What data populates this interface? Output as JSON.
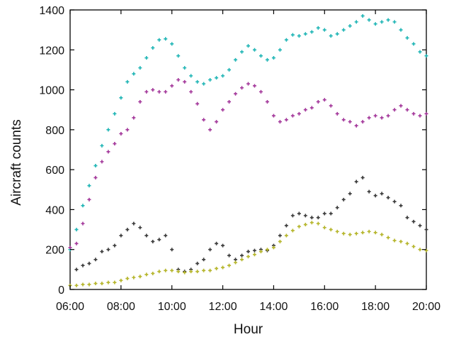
{
  "chart_data": {
    "type": "scatter",
    "xlabel": "Hour",
    "ylabel": "Aircraft counts",
    "x_tick_labels": [
      "06:00",
      "08:00",
      "10:00",
      "12:00",
      "14:00",
      "16:00",
      "18:00",
      "20:00"
    ],
    "x_tick_values": [
      6,
      8,
      10,
      12,
      14,
      16,
      18,
      20
    ],
    "y_ticks": [
      0,
      200,
      400,
      600,
      800,
      1000,
      1200,
      1400
    ],
    "xlim": [
      6,
      20
    ],
    "ylim": [
      0,
      1400
    ],
    "grid": false,
    "legend": false,
    "series": [
      {
        "color": "#1fb5b5",
        "x": [
          6.0,
          6.25,
          6.5,
          6.75,
          7.0,
          7.25,
          7.5,
          7.75,
          8.0,
          8.25,
          8.5,
          8.75,
          9.0,
          9.25,
          9.5,
          9.75,
          10.0,
          10.25,
          10.5,
          10.75,
          11.0,
          11.25,
          11.5,
          11.75,
          12.0,
          12.25,
          12.5,
          12.75,
          13.0,
          13.25,
          13.5,
          13.75,
          14.0,
          14.25,
          14.5,
          14.75,
          15.0,
          15.25,
          15.5,
          15.75,
          16.0,
          16.25,
          16.5,
          16.75,
          17.0,
          17.25,
          17.5,
          17.75,
          18.0,
          18.25,
          18.5,
          18.75,
          19.0,
          19.25,
          19.5,
          19.75,
          20.0
        ],
        "y": [
          200,
          300,
          420,
          520,
          620,
          720,
          800,
          880,
          960,
          1040,
          1080,
          1110,
          1160,
          1210,
          1250,
          1255,
          1230,
          1170,
          1110,
          1070,
          1040,
          1030,
          1050,
          1060,
          1070,
          1100,
          1150,
          1190,
          1220,
          1200,
          1170,
          1150,
          1160,
          1200,
          1250,
          1275,
          1270,
          1280,
          1290,
          1310,
          1300,
          1270,
          1280,
          1300,
          1320,
          1340,
          1370,
          1350,
          1330,
          1340,
          1350,
          1340,
          1300,
          1260,
          1230,
          1190,
          1170
        ]
      },
      {
        "color": "#a3379a",
        "x": [
          6.0,
          6.25,
          6.5,
          6.75,
          7.0,
          7.25,
          7.5,
          7.75,
          8.0,
          8.25,
          8.5,
          8.75,
          9.0,
          9.25,
          9.5,
          9.75,
          10.0,
          10.25,
          10.5,
          10.75,
          11.0,
          11.25,
          11.5,
          11.75,
          12.0,
          12.25,
          12.5,
          12.75,
          13.0,
          13.25,
          13.5,
          13.75,
          14.0,
          14.25,
          14.5,
          14.75,
          15.0,
          15.25,
          15.5,
          15.75,
          16.0,
          16.25,
          16.5,
          16.75,
          17.0,
          17.25,
          17.5,
          17.75,
          18.0,
          18.25,
          18.5,
          18.75,
          19.0,
          19.25,
          19.5,
          19.75,
          20.0
        ],
        "y": [
          210,
          230,
          330,
          450,
          560,
          640,
          690,
          730,
          780,
          800,
          860,
          940,
          990,
          1000,
          990,
          990,
          1020,
          1050,
          1040,
          990,
          930,
          850,
          800,
          840,
          900,
          940,
          980,
          1010,
          1030,
          1020,
          990,
          940,
          870,
          840,
          850,
          870,
          880,
          900,
          910,
          940,
          950,
          920,
          880,
          850,
          840,
          820,
          840,
          860,
          870,
          860,
          870,
          900,
          920,
          900,
          880,
          870,
          880
        ]
      },
      {
        "color": "#3a3a3a",
        "x": [
          6.0,
          6.25,
          6.5,
          6.75,
          7.0,
          7.25,
          7.5,
          7.75,
          8.0,
          8.25,
          8.5,
          8.75,
          9.0,
          9.25,
          9.5,
          9.75,
          10.0,
          10.25,
          10.5,
          10.75,
          11.0,
          11.25,
          11.5,
          11.75,
          12.0,
          12.25,
          12.5,
          12.75,
          13.0,
          13.25,
          13.5,
          13.75,
          14.0,
          14.25,
          14.5,
          14.75,
          15.0,
          15.25,
          15.5,
          15.75,
          16.0,
          16.25,
          16.5,
          16.75,
          17.0,
          17.25,
          17.5,
          17.75,
          18.0,
          18.25,
          18.5,
          18.75,
          19.0,
          19.25,
          19.5,
          19.75,
          20.0
        ],
        "y": [
          20,
          100,
          120,
          130,
          150,
          190,
          200,
          220,
          270,
          300,
          330,
          310,
          270,
          240,
          250,
          270,
          200,
          100,
          90,
          100,
          130,
          150,
          200,
          230,
          220,
          170,
          150,
          170,
          190,
          195,
          200,
          195,
          220,
          270,
          320,
          370,
          380,
          370,
          360,
          360,
          380,
          380,
          410,
          450,
          480,
          540,
          560,
          490,
          470,
          480,
          460,
          440,
          420,
          360,
          340,
          320,
          300
        ]
      },
      {
        "color": "#b5b52a",
        "x": [
          6.0,
          6.25,
          6.5,
          6.75,
          7.0,
          7.25,
          7.5,
          7.75,
          8.0,
          8.25,
          8.5,
          8.75,
          9.0,
          9.25,
          9.5,
          9.75,
          10.0,
          10.25,
          10.5,
          10.75,
          11.0,
          11.25,
          11.5,
          11.75,
          12.0,
          12.25,
          12.5,
          12.75,
          13.0,
          13.25,
          13.5,
          13.75,
          14.0,
          14.25,
          14.5,
          14.75,
          15.0,
          15.25,
          15.5,
          15.75,
          16.0,
          16.25,
          16.5,
          16.75,
          17.0,
          17.25,
          17.5,
          17.75,
          18.0,
          18.25,
          18.5,
          18.75,
          19.0,
          19.25,
          19.5,
          19.75,
          20.0
        ],
        "y": [
          20,
          20,
          25,
          25,
          30,
          30,
          35,
          35,
          45,
          55,
          60,
          65,
          75,
          80,
          90,
          95,
          95,
          90,
          85,
          90,
          90,
          95,
          95,
          105,
          110,
          120,
          135,
          150,
          165,
          175,
          190,
          200,
          210,
          240,
          270,
          295,
          315,
          325,
          335,
          330,
          310,
          300,
          290,
          280,
          275,
          280,
          285,
          290,
          285,
          275,
          260,
          245,
          240,
          230,
          215,
          200,
          195
        ]
      }
    ]
  }
}
